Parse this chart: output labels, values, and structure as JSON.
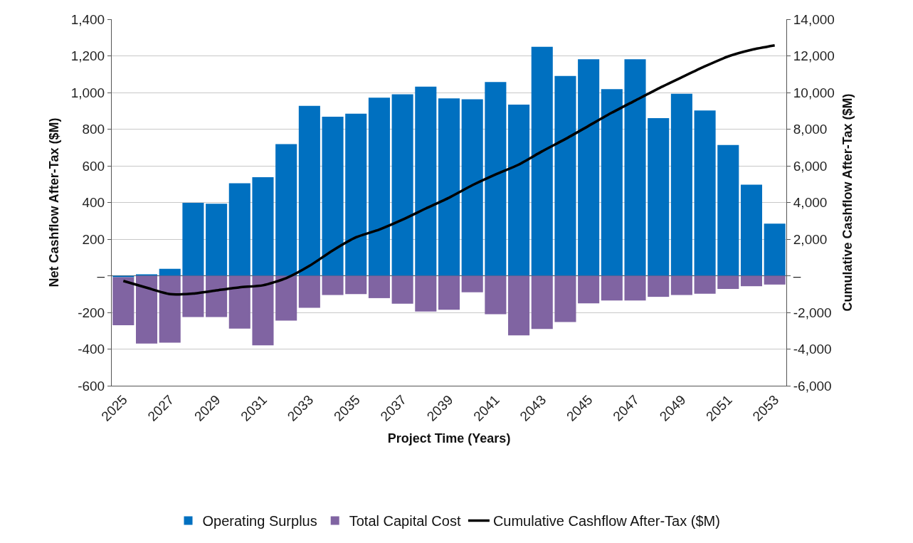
{
  "chart_data": {
    "type": "bar",
    "stacked": true,
    "xlabel": "Project Time (Years)",
    "ylabel": "Net Cashflow After-Tax ($M)",
    "y2label": "Cumulative Cashflow After-Tax ($M)",
    "categories": [
      "2025",
      null,
      "2027",
      null,
      "2029",
      null,
      "2031",
      null,
      "2033",
      null,
      "2035",
      null,
      "2037",
      null,
      "2039",
      null,
      "2041",
      null,
      "2043",
      null,
      "2045",
      null,
      "2047",
      null,
      "2049",
      null,
      "2051",
      null,
      "2053"
    ],
    "series": [
      {
        "name": "Operating Surplus",
        "color": "#0070c0",
        "values": [
          -8,
          8,
          38,
          398,
          393,
          505,
          538,
          718,
          927,
          868,
          884,
          972,
          990,
          1032,
          968,
          963,
          1057,
          934,
          1250,
          1090,
          1182,
          1018,
          1182,
          860,
          993,
          902,
          714,
          497,
          284
        ]
      },
      {
        "name": "Total Capital Cost",
        "color": "#8064a2",
        "values": [
          -262,
          -370,
          -365,
          -225,
          -225,
          -288,
          -380,
          -245,
          -175,
          -105,
          -100,
          -122,
          -152,
          -195,
          -185,
          -90,
          -210,
          -325,
          -290,
          -252,
          -150,
          -135,
          -135,
          -115,
          -105,
          -98,
          -72,
          -57,
          -48
        ]
      },
      {
        "name": "Cumulative Cashflow After-Tax ($M)",
        "type": "line",
        "axis": "y2",
        "color": "#000000",
        "marker": "none",
        "line_style": "solid",
        "values": [
          -280,
          -650,
          -1000,
          -970,
          -800,
          -630,
          -520,
          -130,
          540,
          1380,
          2100,
          2520,
          3060,
          3670,
          4260,
          4940,
          5530,
          6070,
          6790,
          7460,
          8180,
          8900,
          9560,
          10220,
          10830,
          11430,
          11970,
          12330,
          12570
        ]
      }
    ],
    "ylim": [
      -600,
      1400
    ],
    "yticks": [
      -600,
      -400,
      -200,
      {
        "value": 0,
        "label": "–"
      },
      200,
      400,
      600,
      800,
      {
        "value": 1000,
        "label": "1,000"
      },
      {
        "value": 1200,
        "label": "1,200"
      },
      {
        "value": 1400,
        "label": "1,400"
      }
    ],
    "y2lim": [
      -6000,
      14000
    ],
    "y2ticks": [
      {
        "value": -6000,
        "label": "-6,000"
      },
      {
        "value": -4000,
        "label": "-4,000"
      },
      {
        "value": -2000,
        "label": "-2,000"
      },
      {
        "value": 0,
        "label": "–"
      },
      {
        "value": 2000,
        "label": "2,000"
      },
      {
        "value": 4000,
        "label": "4,000"
      },
      {
        "value": 6000,
        "label": "6,000"
      },
      {
        "value": 8000,
        "label": "8,000"
      },
      {
        "value": 10000,
        "label": "10,000"
      },
      {
        "value": 12000,
        "label": "12,000"
      },
      {
        "value": 14000,
        "label": "14,000"
      }
    ],
    "grid": "y",
    "legend": "bottom"
  }
}
